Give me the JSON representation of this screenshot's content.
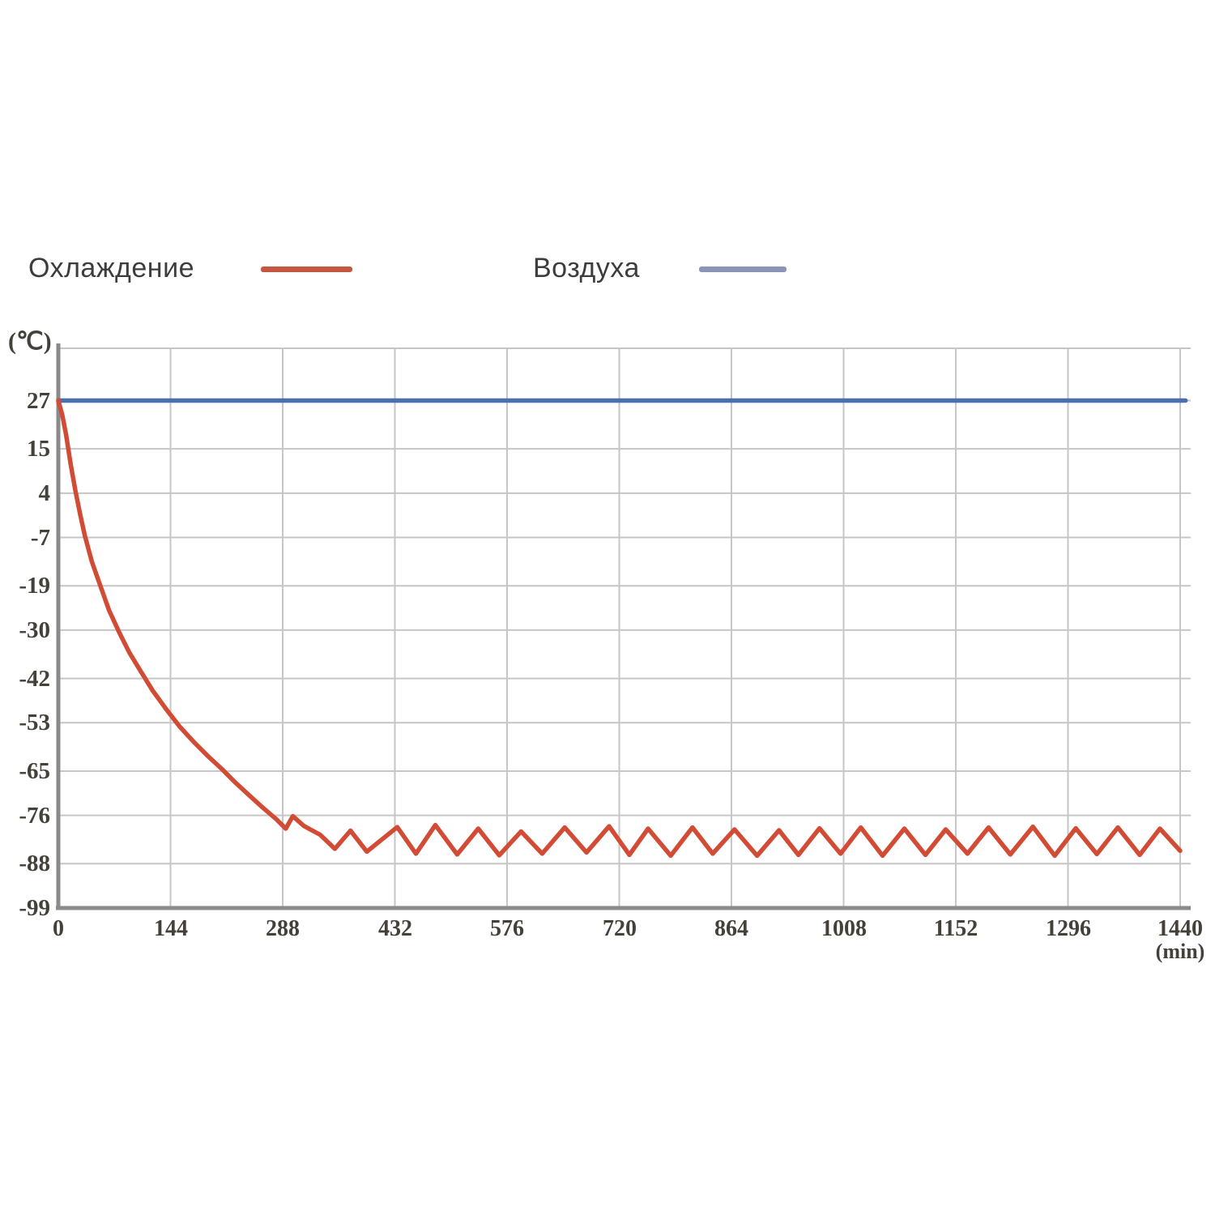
{
  "legend": {
    "items": [
      {
        "label": "Охлаждение",
        "color": "#c3573f"
      },
      {
        "label": "Воздуха",
        "color": "#8b93b6"
      }
    ]
  },
  "axes": {
    "y_unit": "(℃)",
    "x_unit": "(min)",
    "y_ticks": [
      27,
      15,
      4,
      -7,
      -19,
      -30,
      -42,
      -53,
      -65,
      -76,
      -88,
      -99
    ],
    "x_ticks": [
      0,
      144,
      288,
      432,
      576,
      720,
      864,
      1008,
      1152,
      1296,
      1440
    ],
    "grid_color": "#c6c6c6",
    "axis_color": "#8a8a8a"
  },
  "chart_data": {
    "type": "line",
    "title": "",
    "xlabel": "(min)",
    "ylabel": "(℃)",
    "xlim": [
      0,
      1440
    ],
    "ylim": [
      -99,
      27
    ],
    "grid": true,
    "legend_position": "top",
    "series": [
      {
        "name": "Охлаждение",
        "color": "#d24b35",
        "points": [
          [
            0,
            27
          ],
          [
            5,
            23.5
          ],
          [
            10,
            18.5
          ],
          [
            16,
            11
          ],
          [
            22,
            4.5
          ],
          [
            28,
            -1.2
          ],
          [
            34,
            -6.5
          ],
          [
            43,
            -13
          ],
          [
            53,
            -18.5
          ],
          [
            65,
            -25
          ],
          [
            78,
            -30.5
          ],
          [
            91,
            -35.5
          ],
          [
            105,
            -40
          ],
          [
            121,
            -45
          ],
          [
            138,
            -49.5
          ],
          [
            156,
            -54
          ],
          [
            175,
            -58
          ],
          [
            192,
            -61.3
          ],
          [
            210,
            -64.5
          ],
          [
            227,
            -67.8
          ],
          [
            245,
            -71
          ],
          [
            262,
            -74
          ],
          [
            280,
            -77
          ],
          [
            292,
            -79.3
          ],
          [
            301,
            -76.2
          ],
          [
            315,
            -78.6
          ],
          [
            336,
            -80.8
          ],
          [
            355,
            -84.3
          ],
          [
            375,
            -79.8
          ],
          [
            396,
            -85.0
          ],
          [
            435,
            -78.9
          ],
          [
            459,
            -85.5
          ],
          [
            484,
            -78.4
          ],
          [
            512,
            -85.7
          ],
          [
            539,
            -79.3
          ],
          [
            566,
            -85.9
          ],
          [
            594,
            -80.0
          ],
          [
            621,
            -85.5
          ],
          [
            650,
            -79.0
          ],
          [
            678,
            -85.2
          ],
          [
            707,
            -78.7
          ],
          [
            733,
            -85.8
          ],
          [
            757,
            -79.3
          ],
          [
            786,
            -86.0
          ],
          [
            814,
            -79.0
          ],
          [
            840,
            -85.5
          ],
          [
            868,
            -79.5
          ],
          [
            897,
            -86.0
          ],
          [
            925,
            -79.7
          ],
          [
            950,
            -85.8
          ],
          [
            977,
            -79.2
          ],
          [
            1004,
            -85.5
          ],
          [
            1030,
            -79.0
          ],
          [
            1058,
            -86.0
          ],
          [
            1086,
            -79.3
          ],
          [
            1113,
            -85.8
          ],
          [
            1139,
            -79.5
          ],
          [
            1167,
            -85.5
          ],
          [
            1194,
            -79.0
          ],
          [
            1222,
            -85.7
          ],
          [
            1251,
            -78.8
          ],
          [
            1279,
            -86.0
          ],
          [
            1306,
            -79.2
          ],
          [
            1333,
            -85.6
          ],
          [
            1360,
            -79.0
          ],
          [
            1388,
            -85.8
          ],
          [
            1414,
            -79.3
          ],
          [
            1440,
            -84.8
          ]
        ]
      },
      {
        "name": "Воздуха",
        "color": "#4a70ad",
        "points": [
          [
            0,
            27
          ],
          [
            1447,
            27
          ]
        ]
      }
    ]
  }
}
